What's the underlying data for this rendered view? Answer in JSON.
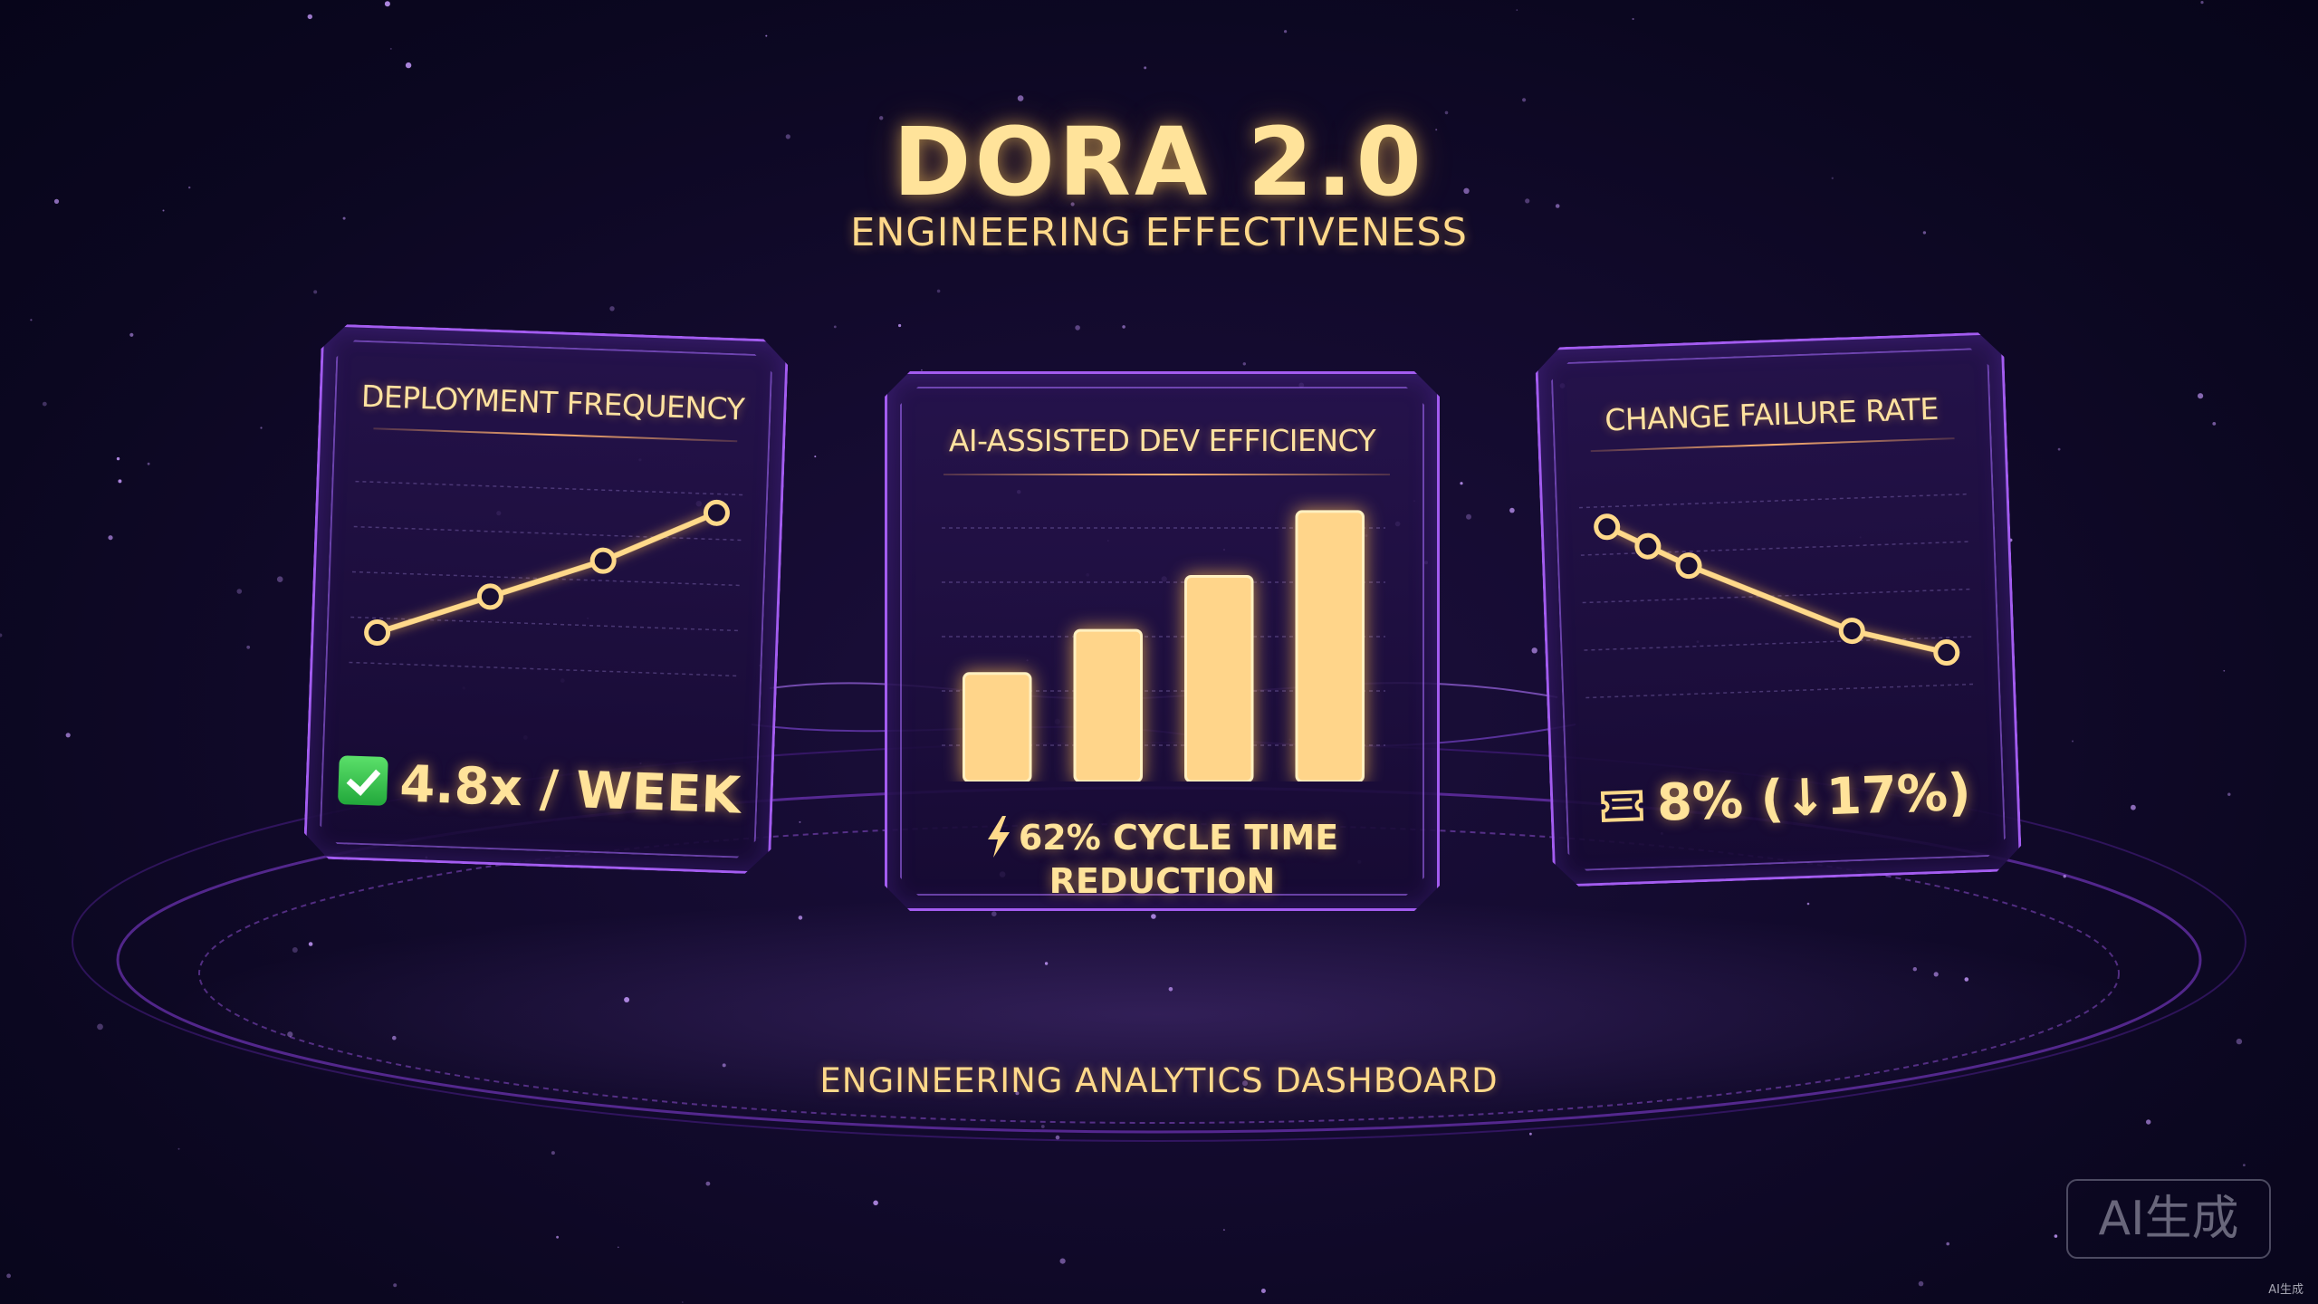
{
  "header": {
    "title": "DORA 2.0",
    "subtitle": "ENGINEERING EFFECTIVENESS"
  },
  "cards": [
    {
      "title": "DEPLOYMENT FREQUENCY",
      "icon": "check-icon",
      "value": "4.8x / WEEK",
      "chart_kind": "line-up"
    },
    {
      "title": "AI-ASSISTED DEV EFFICIENCY",
      "icon": "lightning-icon",
      "value": "62% CYCLE TIME REDUCTION",
      "chart_kind": "bars"
    },
    {
      "title": "CHANGE FAILURE RATE",
      "icon": "ticket-icon",
      "value": "8% (↓17%)",
      "chart_kind": "line-down"
    }
  ],
  "footer": {
    "label": "ENGINEERING ANALYTICS DASHBOARD"
  },
  "watermark": {
    "badge": "AI生成",
    "corner": "AI生成"
  },
  "colors": {
    "background": "#0b0720",
    "accent_gold": "#ffd98a",
    "card_border": "#a35cf0"
  },
  "chart_data": [
    {
      "type": "line",
      "title": "DEPLOYMENT FREQUENCY",
      "x": [
        1,
        2,
        3,
        4
      ],
      "y": [
        1,
        2,
        3,
        4.3
      ],
      "ylim": [
        0,
        5
      ]
    },
    {
      "type": "bar",
      "title": "AI-ASSISTED DEV EFFICIENCY",
      "categories": [
        "1",
        "2",
        "3",
        "4"
      ],
      "values": [
        1.0,
        1.4,
        1.9,
        2.5
      ],
      "ylim": [
        0,
        2.6
      ]
    },
    {
      "type": "line",
      "title": "CHANGE FAILURE RATE",
      "x": [
        1,
        1.3,
        1.6,
        2.8,
        3.5
      ],
      "y": [
        4.3,
        3.8,
        3.3,
        1.6,
        1.0
      ],
      "ylim": [
        0,
        5
      ]
    }
  ]
}
